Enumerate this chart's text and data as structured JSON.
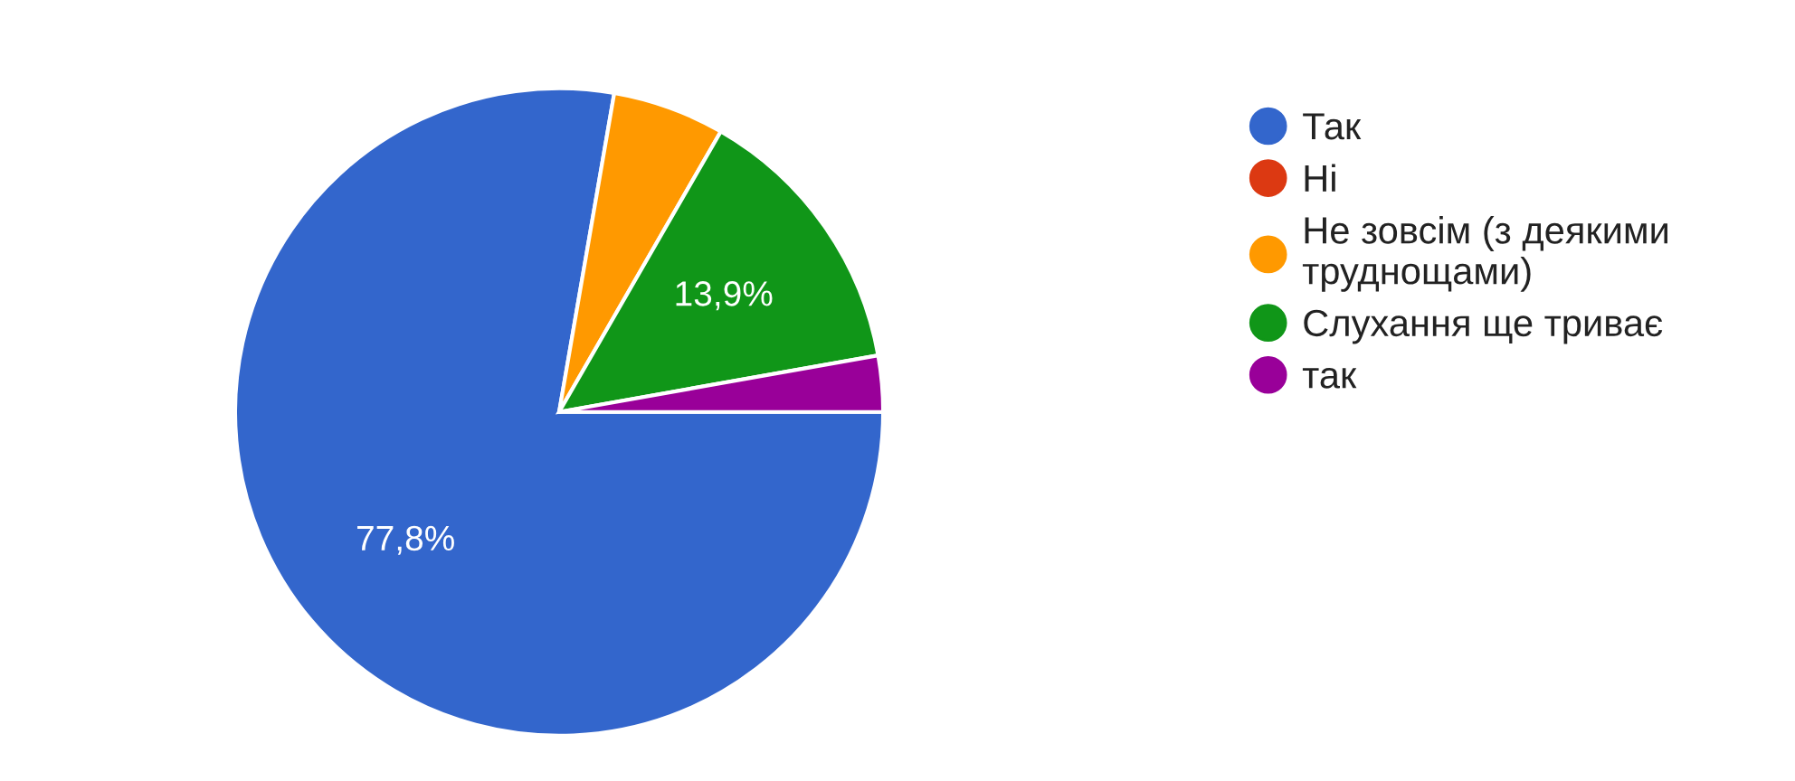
{
  "chart_data": {
    "type": "pie",
    "categories": [
      "Так",
      "Ні",
      "Не зовсім (з деякими\nтруднощами)",
      "Слухання ще триває",
      "так"
    ],
    "values": [
      77.8,
      0,
      5.6,
      13.9,
      2.8
    ],
    "colors": [
      "#3366cc",
      "#dc3912",
      "#ff9900",
      "#109618",
      "#990099"
    ],
    "value_labels": [
      "77,8%",
      null,
      null,
      "13,9%",
      null
    ],
    "legend": "right"
  }
}
